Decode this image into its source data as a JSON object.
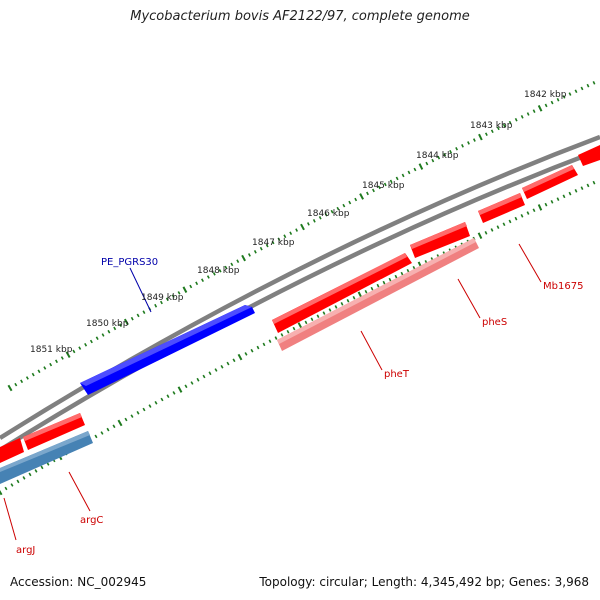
{
  "title": "Mycobacterium bovis AF2122/97, complete genome",
  "footer": {
    "accession": "Accession: NC_002945",
    "topology": "Topology: circular; Length: 4,345,492 bp; Genes: 3,968"
  },
  "colors": {
    "backbone": "#808080",
    "tick": "#1e7a1e",
    "forward_gene": "#ff0000",
    "reverse_gene": "#ff0000",
    "rna_like_gene": "#f08080",
    "pe_pgrs_gene": "#0000ff",
    "argJ_gene": "#4682b4",
    "label_red": "#cc0000",
    "label_blue": "#0000aa"
  },
  "scale_labels": [
    "1842 kbp",
    "1843 kbp",
    "1844 kbp",
    "1845 kbp",
    "1846 kbp",
    "1847 kbp",
    "1848 kbp",
    "1849 kbp",
    "1850 kbp",
    "1851 kbp"
  ],
  "gene_labels": {
    "pe_pgrs30": "PE_PGRS30",
    "mb1675": "Mb1675",
    "pheS": "pheS",
    "pheT": "pheT",
    "argC": "argC",
    "argJ": "argJ"
  }
}
